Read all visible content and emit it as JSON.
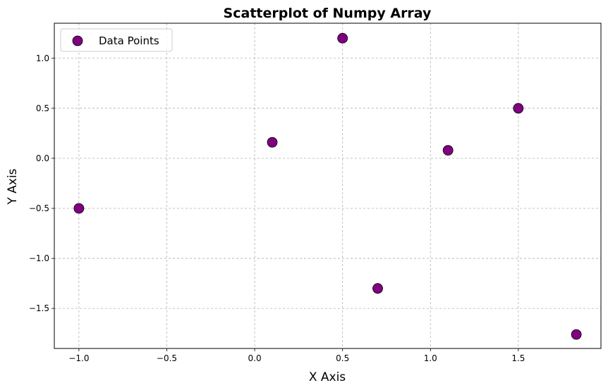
{
  "chart_data": {
    "type": "scatter",
    "title": "Scatterplot of Numpy Array",
    "xlabel": "X Axis",
    "ylabel": "Y Axis",
    "xlim": [
      -1.14,
      1.97
    ],
    "ylim": [
      -1.9,
      1.35
    ],
    "x_ticks": [
      -1.0,
      -0.5,
      0.0,
      0.5,
      1.0,
      1.5
    ],
    "x_tick_labels": [
      "−1.0",
      "−0.5",
      "0.0",
      "0.5",
      "1.0",
      "1.5"
    ],
    "y_ticks": [
      1.0,
      0.5,
      0.0,
      -0.5,
      -1.0,
      -1.5
    ],
    "y_tick_labels": [
      "1.0",
      "0.5",
      "0.0",
      "−0.5",
      "−1.0",
      "−1.5"
    ],
    "grid": true,
    "legend_position": "top-left",
    "series": [
      {
        "name": "Data Points",
        "color": "#800080",
        "edge_color": "#000000",
        "points": [
          {
            "x": -1.0,
            "y": -0.5
          },
          {
            "x": 0.1,
            "y": 0.16
          },
          {
            "x": 0.5,
            "y": 1.2
          },
          {
            "x": 0.7,
            "y": -1.3
          },
          {
            "x": 1.1,
            "y": 0.08
          },
          {
            "x": 1.5,
            "y": 0.5
          },
          {
            "x": 1.83,
            "y": -1.76
          }
        ]
      }
    ]
  }
}
